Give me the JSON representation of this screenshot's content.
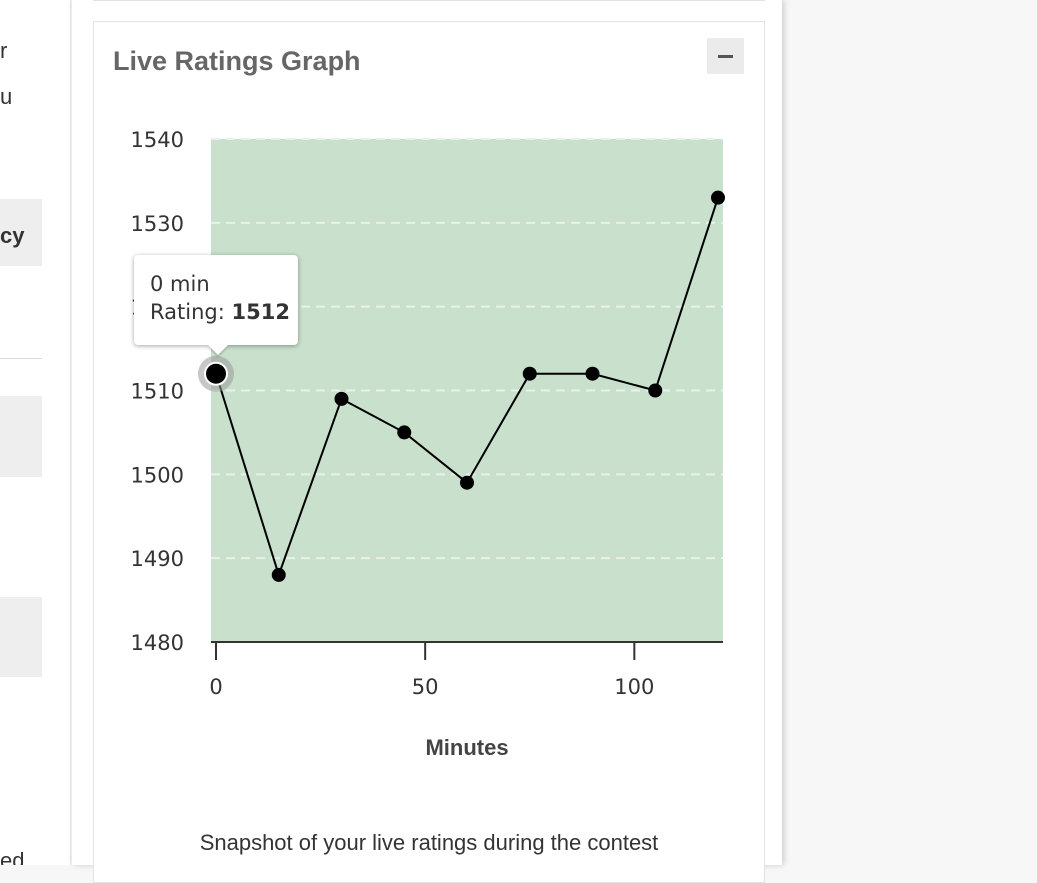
{
  "left_fragments": {
    "line1": "r",
    "line2": "u",
    "tab_suffix": "cy",
    "bottom": "ed"
  },
  "card": {
    "title": "Live Ratings Graph",
    "collapse_icon": "minus-icon",
    "caption": "Snapshot of your live ratings during the contest"
  },
  "tooltip": {
    "time": "0 min",
    "rating_label": "Rating:",
    "rating_value": "1512"
  },
  "colors": {
    "plot_bg": "#c8e0cc",
    "line": "#000000",
    "point": "#000000",
    "hover_halo": "#999999"
  },
  "chart_data": {
    "type": "line",
    "title": "",
    "xlabel": "Minutes",
    "ylabel": "",
    "xlim": [
      0,
      120
    ],
    "ylim": [
      1480,
      1540
    ],
    "x_ticks": [
      0,
      50,
      100
    ],
    "y_ticks": [
      1480,
      1490,
      1500,
      1510,
      1520,
      1530,
      1540
    ],
    "grid": "horizontal-dashed",
    "legend": "none",
    "hovered_index": 0,
    "series": [
      {
        "points": [
          {
            "x": 0,
            "y": 1512
          },
          {
            "x": 15,
            "y": 1488
          },
          {
            "x": 30,
            "y": 1509
          },
          {
            "x": 45,
            "y": 1505
          },
          {
            "x": 60,
            "y": 1499
          },
          {
            "x": 75,
            "y": 1512
          },
          {
            "x": 90,
            "y": 1512
          },
          {
            "x": 105,
            "y": 1510
          },
          {
            "x": 120,
            "y": 1533
          }
        ]
      }
    ]
  }
}
